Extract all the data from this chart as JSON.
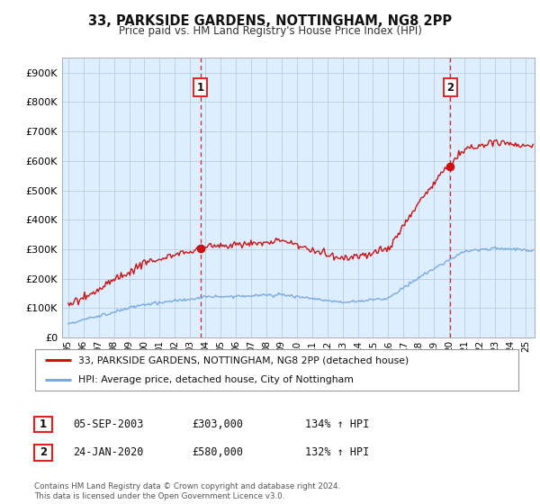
{
  "title": "33, PARKSIDE GARDENS, NOTTINGHAM, NG8 2PP",
  "subtitle": "Price paid vs. HM Land Registry's House Price Index (HPI)",
  "ylim": [
    0,
    950000
  ],
  "yticks": [
    0,
    100000,
    200000,
    300000,
    400000,
    500000,
    600000,
    700000,
    800000,
    900000
  ],
  "ytick_labels": [
    "£0",
    "£100K",
    "£200K",
    "£300K",
    "£400K",
    "£500K",
    "£600K",
    "£700K",
    "£800K",
    "£900K"
  ],
  "hpi_color": "#7aaadd",
  "price_color": "#cc1111",
  "vline_color": "#dd2222",
  "chart_bg_color": "#ddeeff",
  "background_color": "#ffffff",
  "grid_color": "#bbccdd",
  "legend_label_price": "33, PARKSIDE GARDENS, NOTTINGHAM, NG8 2PP (detached house)",
  "legend_label_hpi": "HPI: Average price, detached house, City of Nottingham",
  "sale1_date_num": 2003.68,
  "sale1_price": 303000,
  "sale2_date_num": 2020.06,
  "sale2_price": 580000,
  "footer": "Contains HM Land Registry data © Crown copyright and database right 2024.\nThis data is licensed under the Open Government Licence v3.0.",
  "table_rows": [
    [
      "1",
      "05-SEP-2003",
      "£303,000",
      "134% ↑ HPI"
    ],
    [
      "2",
      "24-JAN-2020",
      "£580,000",
      "132% ↑ HPI"
    ]
  ]
}
